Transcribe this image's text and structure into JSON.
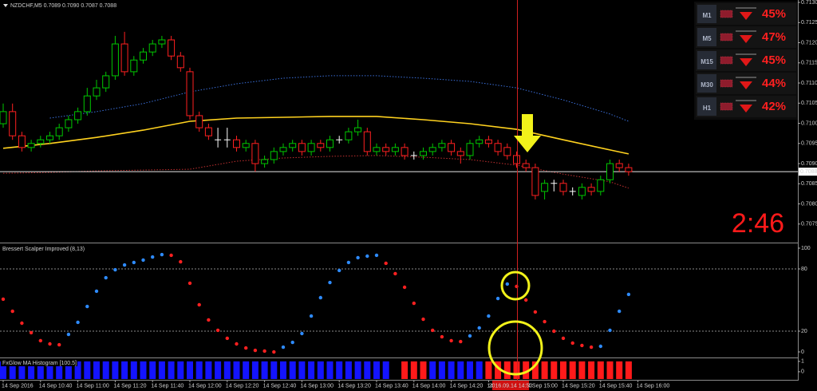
{
  "chart_data": [
    {
      "type": "candlestick",
      "title": "NZDCHF,M5  0.7089 0.7090 0.7087 0.7088",
      "open": [
        0.70999,
        0.71029,
        0.70969,
        0.7094,
        0.7095,
        0.70959,
        0.70969,
        0.70989,
        0.71009,
        0.71029,
        0.71068,
        0.71088,
        0.71118,
        0.71197,
        0.71128,
        0.71157,
        0.71177,
        0.71197,
        0.71207,
        0.71167,
        0.71128,
        0.71019,
        0.70989,
        0.70959,
        0.70959,
        0.70959,
        0.7094,
        0.7095,
        0.709,
        0.7091,
        0.7093,
        0.7094,
        0.7095,
        0.7093,
        0.7095,
        0.7094,
        0.70959,
        0.70959,
        0.70979,
        0.70979,
        0.7093,
        0.7094,
        0.7093,
        0.7094,
        0.7092,
        0.7092,
        0.7093,
        0.7094,
        0.7095,
        0.7093,
        0.7092,
        0.7095,
        0.70959,
        0.7095,
        0.7094,
        0.7092,
        0.709,
        0.7089,
        0.70831,
        0.70851,
        0.70851,
        0.70831,
        0.70821,
        0.70841,
        0.70831,
        0.7086,
        0.709,
        0.7089
      ],
      "high": [
        0.71049,
        0.71049,
        0.70979,
        0.70959,
        0.70969,
        0.70979,
        0.70999,
        0.71019,
        0.71039,
        0.71088,
        0.71108,
        0.71128,
        0.71217,
        0.71227,
        0.71167,
        0.71187,
        0.71207,
        0.71217,
        0.71217,
        0.71177,
        0.71138,
        0.71029,
        0.70999,
        0.70989,
        0.70989,
        0.70969,
        0.70959,
        0.70959,
        0.7092,
        0.7094,
        0.7095,
        0.70959,
        0.70959,
        0.70959,
        0.70959,
        0.70969,
        0.70969,
        0.70989,
        0.71009,
        0.70989,
        0.7095,
        0.7095,
        0.7095,
        0.7095,
        0.7093,
        0.7094,
        0.7095,
        0.70959,
        0.70959,
        0.7094,
        0.70959,
        0.70969,
        0.70969,
        0.70959,
        0.7095,
        0.7093,
        0.7091,
        0.709,
        0.7086,
        0.7086,
        0.7086,
        0.70841,
        0.70851,
        0.70851,
        0.7087,
        0.7091,
        0.7091,
        0.709
      ],
      "low": [
        0.70989,
        0.70959,
        0.7093,
        0.7093,
        0.7094,
        0.7095,
        0.70959,
        0.70979,
        0.70999,
        0.71019,
        0.71058,
        0.71078,
        0.71108,
        0.71118,
        0.71118,
        0.71148,
        0.71167,
        0.71187,
        0.71157,
        0.71128,
        0.71009,
        0.70979,
        0.70959,
        0.7094,
        0.7094,
        0.7093,
        0.7093,
        0.7088,
        0.7089,
        0.709,
        0.7092,
        0.7093,
        0.7092,
        0.7092,
        0.7093,
        0.7093,
        0.7095,
        0.7095,
        0.70969,
        0.7092,
        0.7092,
        0.7092,
        0.7092,
        0.7091,
        0.7091,
        0.7091,
        0.7092,
        0.7093,
        0.7092,
        0.709,
        0.7091,
        0.7094,
        0.7094,
        0.7092,
        0.7091,
        0.7089,
        0.7088,
        0.70811,
        0.70811,
        0.70831,
        0.70821,
        0.70821,
        0.70811,
        0.70821,
        0.70821,
        0.70851,
        0.7088,
        0.7087
      ],
      "close": [
        0.71029,
        0.70969,
        0.7094,
        0.7095,
        0.70959,
        0.70969,
        0.70989,
        0.71009,
        0.71029,
        0.71068,
        0.71088,
        0.71118,
        0.71197,
        0.71128,
        0.71157,
        0.71177,
        0.71197,
        0.71207,
        0.71167,
        0.71138,
        0.71019,
        0.70989,
        0.70969,
        0.70959,
        0.70959,
        0.7094,
        0.7095,
        0.709,
        0.7091,
        0.7093,
        0.7094,
        0.7095,
        0.7093,
        0.7095,
        0.7094,
        0.70959,
        0.70959,
        0.70979,
        0.70989,
        0.7093,
        0.7094,
        0.7093,
        0.7094,
        0.7092,
        0.7092,
        0.7093,
        0.7094,
        0.7095,
        0.7093,
        0.7092,
        0.7095,
        0.70959,
        0.7095,
        0.7093,
        0.7092,
        0.709,
        0.7089,
        0.70821,
        0.70851,
        0.70851,
        0.70831,
        0.70831,
        0.70841,
        0.70831,
        0.7086,
        0.709,
        0.7089,
        0.7088
      ],
      "up_color": "#00c800",
      "down_color": "#ff2020",
      "doji_color": "#ffffff",
      "series": [
        {
          "color": "#ffd21f",
          "style": "solid",
          "x": [
            0,
            5,
            10,
            15,
            20,
            25,
            30,
            35,
            40,
            45,
            50,
            55,
            60,
            65,
            67
          ],
          "values": [
            0.70938,
            0.7095,
            0.70965,
            0.70983,
            0.71005,
            0.71013,
            0.71015,
            0.71017,
            0.71017,
            0.71009,
            0.70999,
            0.70985,
            0.70959,
            0.70934,
            0.70924
          ]
        },
        {
          "color": "#3a6ed8",
          "style": "dotted",
          "x": [
            5,
            10,
            15,
            20,
            25,
            30,
            35,
            40,
            45,
            50,
            55,
            60,
            65,
            67
          ],
          "values": [
            0.71013,
            0.71029,
            0.71049,
            0.71078,
            0.71098,
            0.71112,
            0.71118,
            0.71118,
            0.71112,
            0.71104,
            0.71088,
            0.71058,
            0.71023,
            0.71005
          ]
        },
        {
          "color": "#c03030",
          "style": "dotted",
          "x": [
            0,
            5,
            10,
            15,
            20,
            25,
            30,
            35,
            40,
            45,
            50,
            55,
            60,
            65,
            67
          ],
          "values": [
            0.70876,
            0.70878,
            0.70882,
            0.70884,
            0.70886,
            0.70906,
            0.70914,
            0.70918,
            0.7092,
            0.70916,
            0.7091,
            0.70896,
            0.70874,
            0.70855,
            0.70839
          ]
        }
      ],
      "current_price": 0.7088,
      "ylim": [
        0.70706,
        0.71306
      ],
      "yticks": [
        0.7075,
        {
          "value": 0.708,
          "label": "0.7080"
        },
        0.7085,
        {
          "value": 0.709,
          "label": "0.7090"
        },
        0.7095,
        {
          "value": 0.71,
          "label": "0.7100"
        },
        0.7105,
        {
          "value": 0.711,
          "label": "0.7110"
        },
        0.7115,
        {
          "value": 0.712,
          "label": "0.7120"
        },
        0.7125,
        {
          "value": 0.713,
          "label": "0.7130"
        }
      ]
    },
    {
      "type": "scatter",
      "title": "Bressert Scalper Improved (8,13)",
      "values": [
        50.8,
        39.2,
        27.7,
        18.5,
        10.8,
        7.7,
        6.9,
        16.9,
        28.5,
        43.8,
        58.5,
        71.5,
        79.2,
        83.8,
        86.2,
        88.5,
        91.5,
        93.8,
        93.1,
        86.9,
        66.2,
        45.4,
        30.8,
        20.8,
        13.1,
        7.7,
        3.8,
        1.5,
        0.8,
        0,
        4.6,
        9.2,
        17.7,
        34.6,
        52.3,
        66.9,
        78.5,
        86.2,
        90.8,
        92.3,
        93.1,
        85.4,
        75.4,
        62.3,
        46.9,
        31.5,
        20.8,
        14.6,
        10.8,
        10,
        15.4,
        23.1,
        34.6,
        51.5,
        65.4,
        63.1,
        50,
        38.5,
        29.2,
        20,
        13.1,
        8.5,
        6.2,
        4.6,
        5.4,
        20.8,
        39.2,
        55.4
      ],
      "up_color": "#2e8bff",
      "down_color": "#ff2020",
      "levels": [
        20,
        80
      ],
      "ylim": [
        -4.6,
        104.6
      ],
      "yticks": [
        0,
        20,
        80,
        100
      ]
    },
    {
      "type": "bar",
      "title": "FxGlow MA Histogram [100.5]",
      "series": [
        {
          "color": "#1414ff",
          "values": [
            1,
            1,
            1,
            1,
            1,
            1,
            1,
            1,
            1,
            1,
            1,
            1,
            1,
            1,
            1,
            1,
            1,
            1,
            1,
            1,
            1,
            1,
            1,
            1,
            1,
            1,
            1,
            1,
            1,
            1,
            1,
            1,
            1,
            1,
            1,
            1,
            1,
            1,
            1,
            1,
            1,
            1,
            null,
            null,
            null,
            null,
            1,
            1,
            1,
            1,
            1,
            1,
            null,
            null,
            null,
            null,
            null,
            null,
            null,
            null,
            null,
            null,
            null,
            null,
            null,
            null,
            null,
            null
          ]
        },
        {
          "color": "#ff1a1a",
          "values": [
            null,
            null,
            null,
            null,
            null,
            null,
            null,
            null,
            null,
            null,
            null,
            null,
            null,
            null,
            null,
            null,
            null,
            null,
            null,
            null,
            null,
            null,
            null,
            null,
            null,
            null,
            null,
            null,
            null,
            null,
            null,
            null,
            null,
            null,
            null,
            null,
            null,
            null,
            null,
            null,
            null,
            null,
            null,
            1,
            1,
            1,
            null,
            null,
            null,
            null,
            null,
            null,
            1,
            1,
            1,
            1,
            1,
            1,
            1,
            1,
            1,
            1,
            1,
            1,
            1,
            1,
            1,
            1
          ]
        }
      ],
      "ylim": [
        -0.7,
        1.3
      ],
      "yticks": [
        0,
        1
      ],
      "xticks": [
        {
          "value": 0,
          "label": "14 Sep 2016"
        },
        {
          "value": 4,
          "label": "14 Sep 10:40"
        },
        {
          "value": 8,
          "label": "14 Sep 11:00"
        },
        {
          "value": 12,
          "label": "14 Sep 11:20"
        },
        {
          "value": 16,
          "label": "14 Sep 11:40"
        },
        {
          "value": 20,
          "label": "14 Sep 12:00"
        },
        {
          "value": 24,
          "label": "14 Sep 12:20"
        },
        {
          "value": 28,
          "label": "14 Sep 12:40"
        },
        {
          "value": 32,
          "label": "14 Sep 13:00"
        },
        {
          "value": 36,
          "label": "14 Sep 13:20"
        },
        {
          "value": 40,
          "label": "14 Sep 13:40"
        },
        {
          "value": 44,
          "label": "14 Sep 14:00"
        },
        {
          "value": 48,
          "label": "14 Sep 14:20"
        },
        {
          "value": 52,
          "label": "14 Sep 14:40"
        },
        {
          "value": 56,
          "label": "14 Sep 15:00"
        },
        {
          "value": 60,
          "label": "14 Sep 15:20"
        },
        {
          "value": 64,
          "label": "14 Sep 15:40"
        },
        {
          "value": 68,
          "label": "14 Sep 16:00"
        }
      ]
    }
  ],
  "cursor_label": "2016.09.14 14:50",
  "timer": "2:46",
  "signals": [
    {
      "timeframe": "M1",
      "percent": "45%"
    },
    {
      "timeframe": "M5",
      "percent": "47%"
    },
    {
      "timeframe": "M15",
      "percent": "45%"
    },
    {
      "timeframe": "M30",
      "percent": "44%"
    },
    {
      "timeframe": "H1",
      "percent": "42%"
    }
  ]
}
